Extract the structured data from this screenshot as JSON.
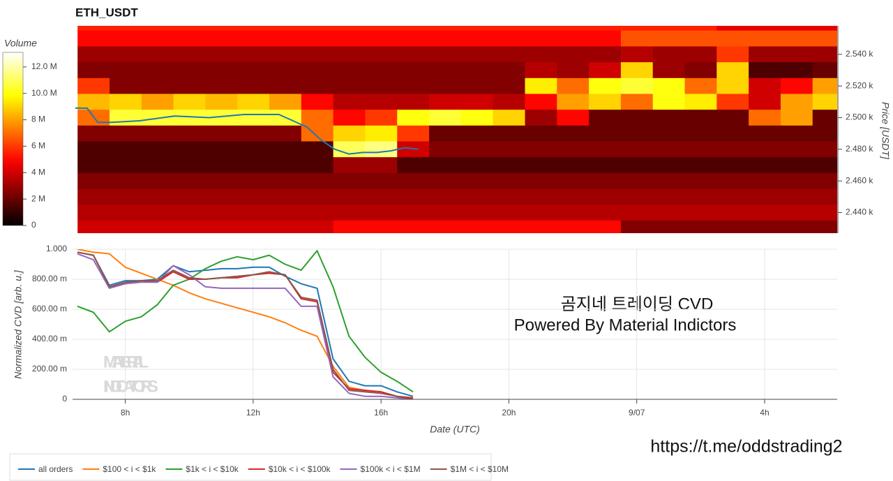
{
  "chart_data": [
    {
      "type": "heatmap",
      "title": "ETH_USDT",
      "ylabel": "Price [USDT]",
      "x": [
        7,
        8,
        9,
        10,
        11,
        12,
        13,
        14,
        15,
        16,
        17,
        18,
        19,
        20,
        21,
        22,
        23,
        24,
        25,
        26,
        27,
        28,
        29,
        30
      ],
      "y": [
        2560,
        2550,
        2540,
        2530,
        2520,
        2510,
        2500,
        2490,
        2480,
        2470,
        2460,
        2450,
        2440,
        2430
      ],
      "z": [
        [
          5.5,
          5.5,
          5.5,
          5.5,
          5.5,
          5.5,
          5.5,
          5.5,
          5.5,
          5.5,
          5.5,
          5.5,
          5.5,
          5.5,
          5.5,
          5.5,
          5.5,
          5.5,
          5.5,
          5.5,
          4.5,
          4.5,
          4.5,
          4.5
        ],
        [
          5,
          5,
          5,
          5,
          5,
          5,
          5,
          5,
          5,
          5,
          5,
          5,
          5,
          5,
          5,
          5,
          5,
          6.5,
          6.5,
          6.5,
          6.5,
          6.5,
          6.5,
          6.5
        ],
        [
          3,
          3,
          3,
          3,
          3,
          3,
          3,
          3,
          3,
          3,
          3,
          3,
          3,
          3,
          3,
          3,
          3,
          3.5,
          3,
          3,
          6,
          3,
          3,
          3
        ],
        [
          2.5,
          2.5,
          2.5,
          2.5,
          2.5,
          2.5,
          2.5,
          2.5,
          2.5,
          2.5,
          2.5,
          2.5,
          2.5,
          2.5,
          3.5,
          3,
          4,
          9,
          3,
          2.5,
          9,
          1.5,
          1.5,
          2
        ],
        [
          6,
          2.5,
          2.5,
          2.5,
          2.5,
          2.5,
          2.5,
          2.5,
          2.5,
          2.5,
          2.5,
          2.5,
          2.5,
          2.5,
          9.5,
          7,
          10,
          10.5,
          10,
          7,
          9,
          4,
          5,
          8
        ],
        [
          8.5,
          9,
          8,
          9,
          8.5,
          9,
          8,
          5,
          3.5,
          3.5,
          3.5,
          4,
          4,
          3.5,
          5,
          8,
          9,
          7,
          10,
          9.5,
          6,
          4,
          8,
          9
        ],
        [
          7,
          10.5,
          10.5,
          10.5,
          10.5,
          10.5,
          10.5,
          7,
          5,
          6,
          10,
          10.5,
          10,
          9,
          3,
          5,
          2,
          2,
          2,
          2,
          2,
          7,
          8,
          2
        ],
        [
          2.5,
          2.5,
          2.5,
          2.5,
          2.5,
          2.5,
          2.5,
          7,
          9,
          9.5,
          6,
          2,
          2,
          2,
          2,
          2,
          2,
          2,
          2,
          2,
          2,
          2,
          2,
          2
        ],
        [
          1.5,
          1.5,
          1.5,
          1.5,
          1.5,
          1.5,
          1.5,
          1.5,
          11,
          11.5,
          4,
          2.5,
          2.5,
          2.5,
          2.5,
          2.5,
          2.5,
          2.5,
          2.5,
          2.5,
          2.5,
          2.5,
          2.5,
          2.5
        ],
        [
          1.5,
          1.5,
          1.5,
          1.5,
          1.5,
          1.5,
          1.5,
          1.5,
          3,
          3,
          1.5,
          1.5,
          1.5,
          1.5,
          1.5,
          1.5,
          1.5,
          1.5,
          1.5,
          1.5,
          1.5,
          1.5,
          1.5,
          1.5
        ],
        [
          2.5,
          2.5,
          2.5,
          2.5,
          2.5,
          2.5,
          2.5,
          2.5,
          2.5,
          2.5,
          2.5,
          2.5,
          2.5,
          2.5,
          2.5,
          2.5,
          2.5,
          2.5,
          2.5,
          2.5,
          2.5,
          2.5,
          2.5,
          2.5
        ],
        [
          3,
          3,
          3,
          3,
          3,
          3,
          3,
          3,
          3,
          3,
          3,
          3,
          3,
          3,
          3,
          3,
          3,
          3,
          3,
          3,
          3,
          3,
          3,
          3
        ],
        [
          3.5,
          3.5,
          3.5,
          3.5,
          3.5,
          3.5,
          3.5,
          3.5,
          3.5,
          3.5,
          3.5,
          3.5,
          3.5,
          3.5,
          3.5,
          3.5,
          3.5,
          3.5,
          3.5,
          3.5,
          3.5,
          3.5,
          3.5,
          3.5
        ],
        [
          4,
          4,
          4,
          4,
          4,
          4,
          4,
          4,
          5,
          5,
          5,
          5,
          5,
          5,
          5,
          5,
          5,
          2.5,
          2.5,
          2.5,
          2.5,
          2.5,
          2.5,
          2.5
        ]
      ],
      "xlim": [
        6.43,
        30.27
      ],
      "ylim": [
        2427,
        2558
      ],
      "yticks": [
        {
          "value": 2440,
          "label": "2.440 k"
        },
        {
          "value": 2460,
          "label": "2.460 k"
        },
        {
          "value": 2480,
          "label": "2.480 k"
        },
        {
          "value": 2500,
          "label": "2.500 k"
        },
        {
          "value": 2520,
          "label": "2.520 k"
        },
        {
          "value": 2540,
          "label": "2.540 k"
        }
      ],
      "colorbar": {
        "title": "Volume",
        "lim": [
          0,
          13.1
        ],
        "ticks": [
          0,
          {
            "value": 2,
            "label": "2 M"
          },
          {
            "value": 4,
            "label": "4 M"
          },
          {
            "value": 6,
            "label": "6 M"
          },
          {
            "value": 8,
            "label": "8 M"
          },
          {
            "value": 10,
            "label": "10.0 M"
          },
          {
            "value": 12,
            "label": "12.0 M"
          }
        ]
      },
      "series": [
        {
          "color": "#1f77b4",
          "x": [
            6.43,
            6.8,
            7.13,
            7.56,
            8.44,
            9.53,
            10.62,
            11.71,
            12.8,
            13.24,
            13.68,
            14.11,
            14.55,
            14.99,
            15.42,
            15.86,
            16.3,
            16.73,
            17.17
          ],
          "values": [
            2506,
            2506,
            2497,
            2497,
            2498,
            2501,
            2500,
            2502,
            2502,
            2498,
            2494,
            2486,
            2480,
            2477,
            2478,
            2478,
            2479,
            2481,
            2480
          ]
        }
      ]
    },
    {
      "type": "line",
      "xlabel": "Date (UTC)",
      "ylabel": "Normalized CVD [arb. u.]",
      "x": [
        6.5,
        7,
        7.5,
        8,
        8.5,
        9,
        9.5,
        10,
        10.5,
        11,
        11.5,
        12,
        12.5,
        13,
        13.5,
        14,
        14.5,
        15,
        15.5,
        16,
        16.5,
        17
      ],
      "xlim": [
        6.35,
        30.27
      ],
      "ylim": [
        0,
        1
      ],
      "xticks": [
        {
          "value": 8,
          "label": "8h"
        },
        {
          "value": 12,
          "label": "12h"
        },
        {
          "value": 16,
          "label": "16h"
        },
        {
          "value": 20,
          "label": "20h"
        },
        {
          "value": 24,
          "label": "9/07"
        },
        {
          "value": 28,
          "label": "4h"
        }
      ],
      "yticks": [
        0,
        {
          "value": 0.2,
          "label": "200.00 m"
        },
        {
          "value": 0.4,
          "label": "400.00 m"
        },
        {
          "value": 0.6,
          "label": "600.00 m"
        },
        {
          "value": 0.8,
          "label": "800.00 m"
        },
        {
          "value": 1,
          "label": "1.000"
        }
      ],
      "grid": true,
      "series": [
        {
          "name": "all orders",
          "color": "#1f77b4",
          "values": [
            0.98,
            0.96,
            0.76,
            0.79,
            0.79,
            0.8,
            0.89,
            0.85,
            0.86,
            0.87,
            0.87,
            0.88,
            0.88,
            0.82,
            0.77,
            0.74,
            0.27,
            0.12,
            0.09,
            0.09,
            0.05,
            0.02
          ]
        },
        {
          "name": "$100 < i < $1k",
          "color": "#ff7f0e",
          "values": [
            1.0,
            0.98,
            0.97,
            0.88,
            0.84,
            0.8,
            0.76,
            0.71,
            0.67,
            0.64,
            0.61,
            0.58,
            0.55,
            0.51,
            0.46,
            0.42,
            0.22,
            0.08,
            0.06,
            0.05,
            0.02,
            0.01
          ]
        },
        {
          "name": "$1k < i < $10k",
          "color": "#2ca02c",
          "values": [
            0.62,
            0.58,
            0.45,
            0.52,
            0.55,
            0.63,
            0.76,
            0.8,
            0.87,
            0.92,
            0.95,
            0.93,
            0.96,
            0.9,
            0.86,
            0.99,
            0.75,
            0.42,
            0.28,
            0.18,
            0.12,
            0.05
          ]
        },
        {
          "name": "$10k < i < $100k",
          "color": "#d62728",
          "values": [
            0.98,
            0.96,
            0.75,
            0.77,
            0.79,
            0.78,
            0.85,
            0.8,
            0.8,
            0.81,
            0.81,
            0.83,
            0.84,
            0.83,
            0.67,
            0.65,
            0.18,
            0.07,
            0.06,
            0.05,
            0.02,
            0.01
          ]
        },
        {
          "name": "$100k < i < $1M",
          "color": "#9467bd",
          "values": [
            0.97,
            0.93,
            0.74,
            0.77,
            0.78,
            0.78,
            0.89,
            0.83,
            0.75,
            0.74,
            0.74,
            0.74,
            0.74,
            0.74,
            0.62,
            0.62,
            0.15,
            0.04,
            0.02,
            0.02,
            0.01,
            0.0
          ]
        },
        {
          "name": "$1M < i < $10M",
          "color": "#8c564b",
          "values": [
            0.98,
            0.96,
            0.75,
            0.78,
            0.79,
            0.79,
            0.86,
            0.81,
            0.8,
            0.81,
            0.82,
            0.83,
            0.85,
            0.83,
            0.68,
            0.66,
            0.2,
            0.06,
            0.05,
            0.04,
            0.02,
            0.0
          ]
        }
      ],
      "annotations": [
        "곰지네 트레이딩 CVD",
        "Powered By Material Indictors"
      ],
      "watermark": [
        "MATERIAL",
        "INDICATORS"
      ]
    }
  ],
  "link": "https://t.me/oddstrading2"
}
